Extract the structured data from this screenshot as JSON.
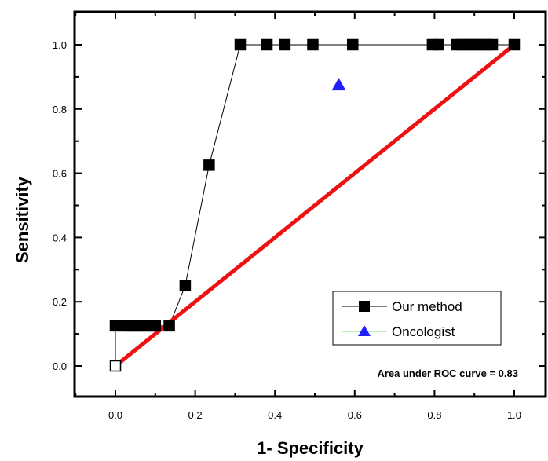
{
  "chart_data": {
    "type": "line",
    "xlabel": "1- Specificity",
    "ylabel": "Sensitivity",
    "xlim": [
      -0.1,
      1.06
    ],
    "ylim": [
      -0.1,
      1.08
    ],
    "xticks": [
      "0.0",
      "0.2",
      "0.4",
      "0.6",
      "0.8",
      "1.0"
    ],
    "yticks": [
      "0.0",
      "0.2",
      "0.4",
      "0.6",
      "0.8",
      "1.0"
    ],
    "grid": false,
    "legend_position": "bottom-right",
    "annotation": "Area under ROC curve = 0.83",
    "series": [
      {
        "name": "Our method",
        "marker": "square",
        "color": "#000000",
        "x": [
          0.0,
          0.0,
          0.02,
          0.03,
          0.04,
          0.05,
          0.06,
          0.07,
          0.08,
          0.09,
          0.1,
          0.135,
          0.175,
          0.235,
          0.313,
          0.38,
          0.425,
          0.495,
          0.595,
          0.795,
          0.81,
          0.855,
          0.87,
          0.885,
          0.9,
          0.915,
          0.93,
          0.945,
          1.0
        ],
        "y": [
          0.0,
          0.125,
          0.125,
          0.125,
          0.125,
          0.125,
          0.125,
          0.125,
          0.125,
          0.125,
          0.125,
          0.125,
          0.25,
          0.625,
          1.0,
          1.0,
          1.0,
          1.0,
          1.0,
          1.0,
          1.0,
          1.0,
          1.0,
          1.0,
          1.0,
          1.0,
          1.0,
          1.0,
          1.0
        ]
      },
      {
        "name": "Oncologist",
        "marker": "triangle",
        "color": "#1f1fff",
        "x": [
          0.56
        ],
        "y": [
          0.875
        ]
      }
    ],
    "reference_line": {
      "x": [
        0.0,
        1.0
      ],
      "y": [
        0.0,
        1.0
      ],
      "color": "#ee1111"
    }
  }
}
